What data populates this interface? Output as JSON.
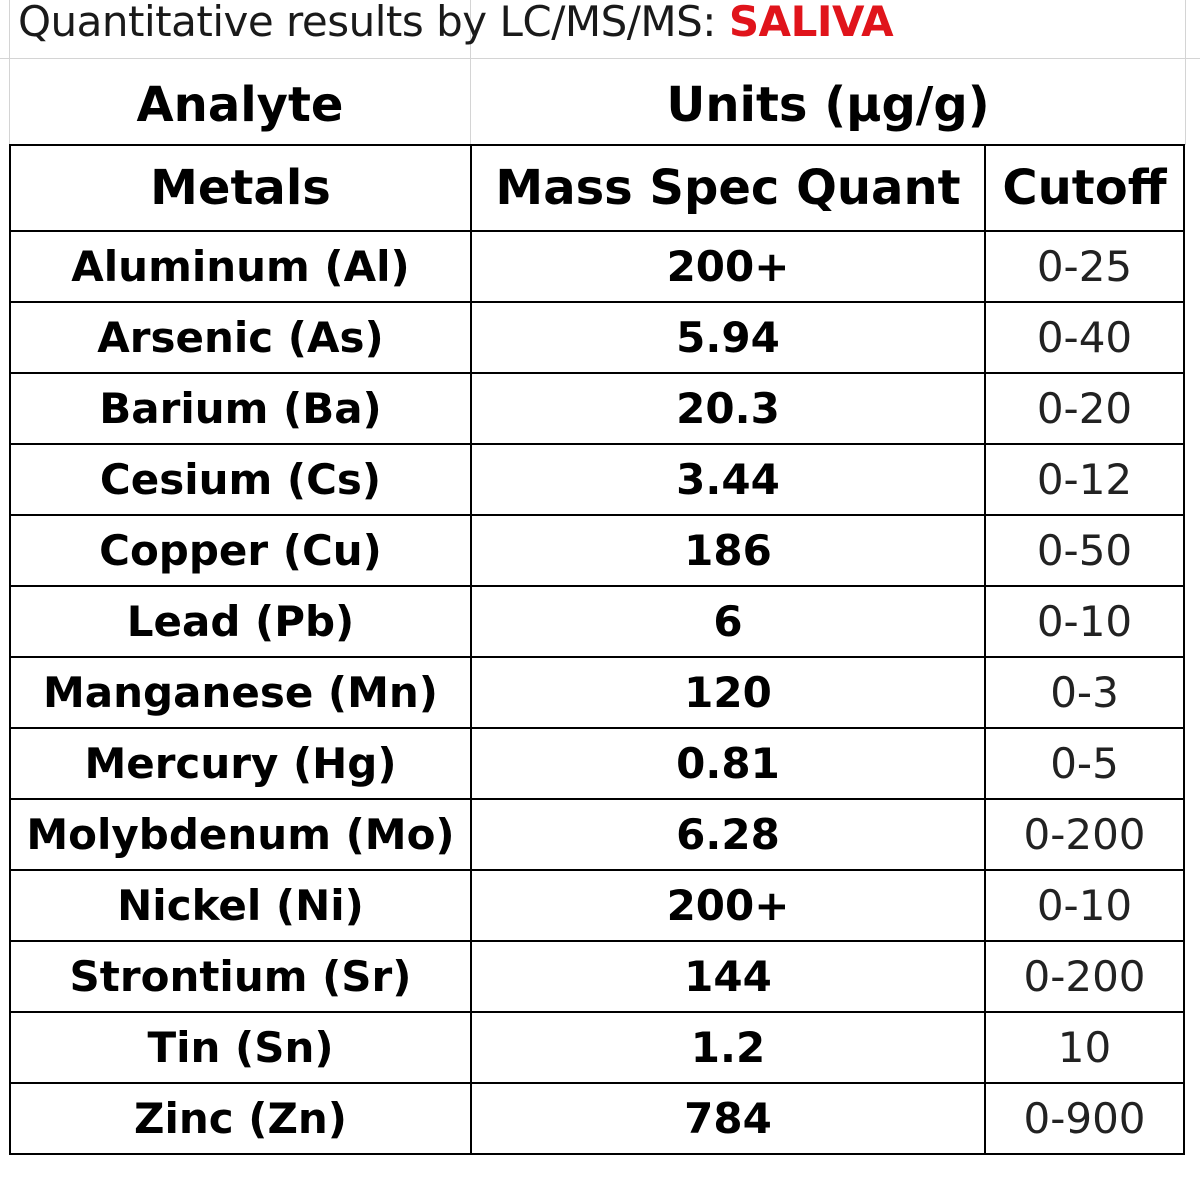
{
  "title": {
    "prefix": "Quantitative results by LC/MS/MS: ",
    "highlight": "SALIVA"
  },
  "headers": {
    "analyte": "Analyte",
    "units": "Units (µg/g)",
    "metals": "Metals",
    "mass_spec_quant": "Mass Spec Quant",
    "cutoff": "Cutoff"
  },
  "rows": [
    {
      "metal": "Aluminum (Al)",
      "quant": "200+",
      "cutoff": "0-25"
    },
    {
      "metal": "Arsenic (As)",
      "quant": "5.94",
      "cutoff": "0-40"
    },
    {
      "metal": "Barium (Ba)",
      "quant": "20.3",
      "cutoff": "0-20"
    },
    {
      "metal": "Cesium (Cs)",
      "quant": "3.44",
      "cutoff": "0-12"
    },
    {
      "metal": "Copper (Cu)",
      "quant": "186",
      "cutoff": "0-50"
    },
    {
      "metal": "Lead (Pb)",
      "quant": "6",
      "cutoff": "0-10"
    },
    {
      "metal": "Manganese (Mn)",
      "quant": "120",
      "cutoff": "0-3"
    },
    {
      "metal": "Mercury (Hg)",
      "quant": "0.81",
      "cutoff": "0-5"
    },
    {
      "metal": "Molybdenum (Mo)",
      "quant": "6.28",
      "cutoff": "0-200"
    },
    {
      "metal": "Nickel (Ni)",
      "quant": "200+",
      "cutoff": "0-10"
    },
    {
      "metal": "Strontium (Sr)",
      "quant": "144",
      "cutoff": "0-200"
    },
    {
      "metal": "Tin (Sn)",
      "quant": "1.2",
      "cutoff": "10"
    },
    {
      "metal": "Zinc (Zn)",
      "quant": "784",
      "cutoff": "0-900"
    }
  ],
  "colors": {
    "highlight": "#e0141b",
    "gridline": "#d4d4d4",
    "border": "#000000"
  }
}
